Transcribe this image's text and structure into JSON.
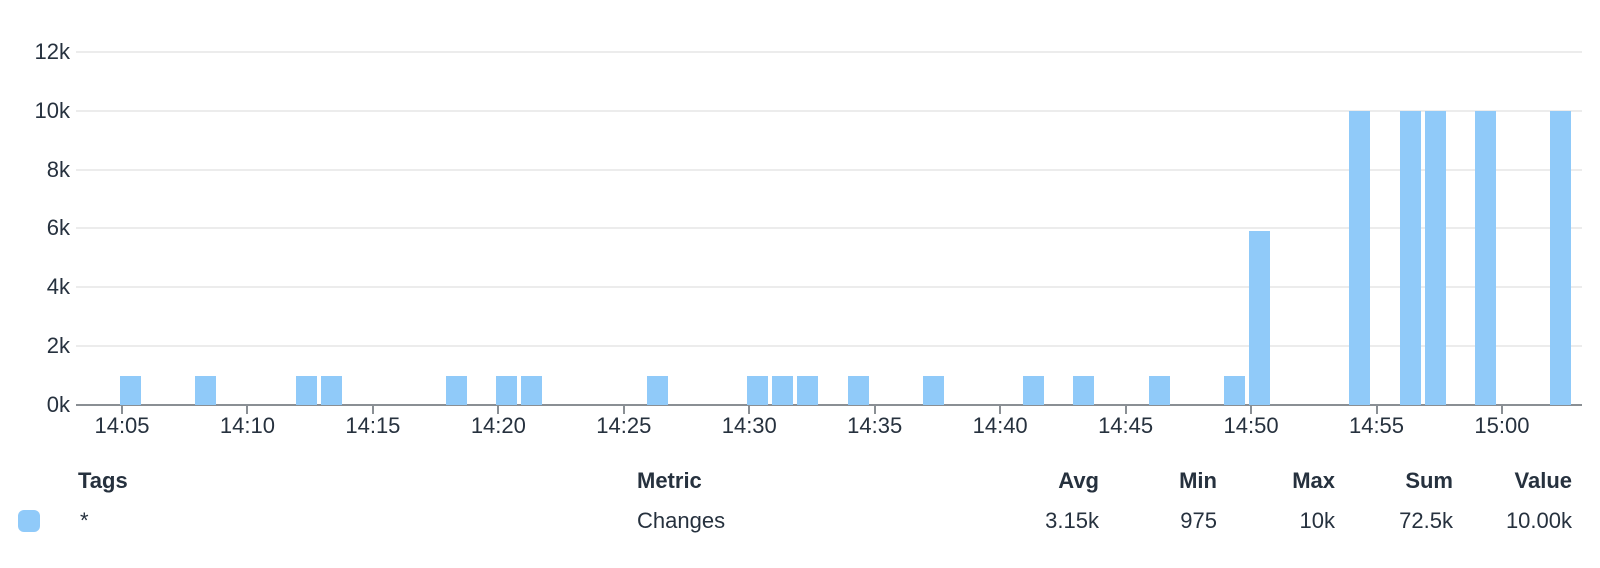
{
  "colors": {
    "series_blue": "#90caf9",
    "text_dark": "#26313e",
    "gridline": "#ececec",
    "axis_line": "#8a8f94"
  },
  "chart_data": {
    "type": "bar",
    "title": "",
    "xlabel": "",
    "ylabel": "",
    "ylim": [
      0,
      12000
    ],
    "grid": true,
    "legend_position": "bottom-table",
    "y_ticks": [
      {
        "value": 12000,
        "label": "12k"
      },
      {
        "value": 10000,
        "label": "10k"
      },
      {
        "value": 8000,
        "label": "8k"
      },
      {
        "value": 6000,
        "label": "6k"
      },
      {
        "value": 4000,
        "label": "4k"
      },
      {
        "value": 2000,
        "label": "2k"
      },
      {
        "value": 0,
        "label": "0k"
      }
    ],
    "x_ticks": [
      "14:05",
      "14:10",
      "14:15",
      "14:20",
      "14:25",
      "14:30",
      "14:35",
      "14:40",
      "14:45",
      "14:50",
      "14:55",
      "15:00"
    ],
    "series": [
      {
        "name": "Changes",
        "color": "#90caf9",
        "points": [
          {
            "time": "14:05",
            "value": 975
          },
          {
            "time": "14:08",
            "value": 975
          },
          {
            "time": "14:12",
            "value": 975
          },
          {
            "time": "14:13",
            "value": 975
          },
          {
            "time": "14:18",
            "value": 975
          },
          {
            "time": "14:20",
            "value": 975
          },
          {
            "time": "14:21",
            "value": 975
          },
          {
            "time": "14:26",
            "value": 975
          },
          {
            "time": "14:30",
            "value": 975
          },
          {
            "time": "14:31",
            "value": 975
          },
          {
            "time": "14:32",
            "value": 975
          },
          {
            "time": "14:34",
            "value": 975
          },
          {
            "time": "14:37",
            "value": 975
          },
          {
            "time": "14:41",
            "value": 975
          },
          {
            "time": "14:43",
            "value": 975
          },
          {
            "time": "14:46",
            "value": 975
          },
          {
            "time": "14:49",
            "value": 975
          },
          {
            "time": "14:50",
            "value": 5925
          },
          {
            "time": "14:54",
            "value": 10000
          },
          {
            "time": "14:56",
            "value": 10000
          },
          {
            "time": "14:57",
            "value": 10000
          },
          {
            "time": "14:59",
            "value": 10000
          },
          {
            "time": "15:02",
            "value": 10000
          }
        ]
      }
    ]
  },
  "legend": {
    "headers": {
      "tags": "Tags",
      "metric": "Metric",
      "avg": "Avg",
      "min": "Min",
      "max": "Max",
      "sum": "Sum",
      "value": "Value"
    },
    "rows": [
      {
        "swatch_color": "#90caf9",
        "tags": "*",
        "metric": "Changes",
        "avg": "3.15k",
        "min": "975",
        "max": "10k",
        "sum": "72.5k",
        "value": "10.00k"
      }
    ]
  }
}
